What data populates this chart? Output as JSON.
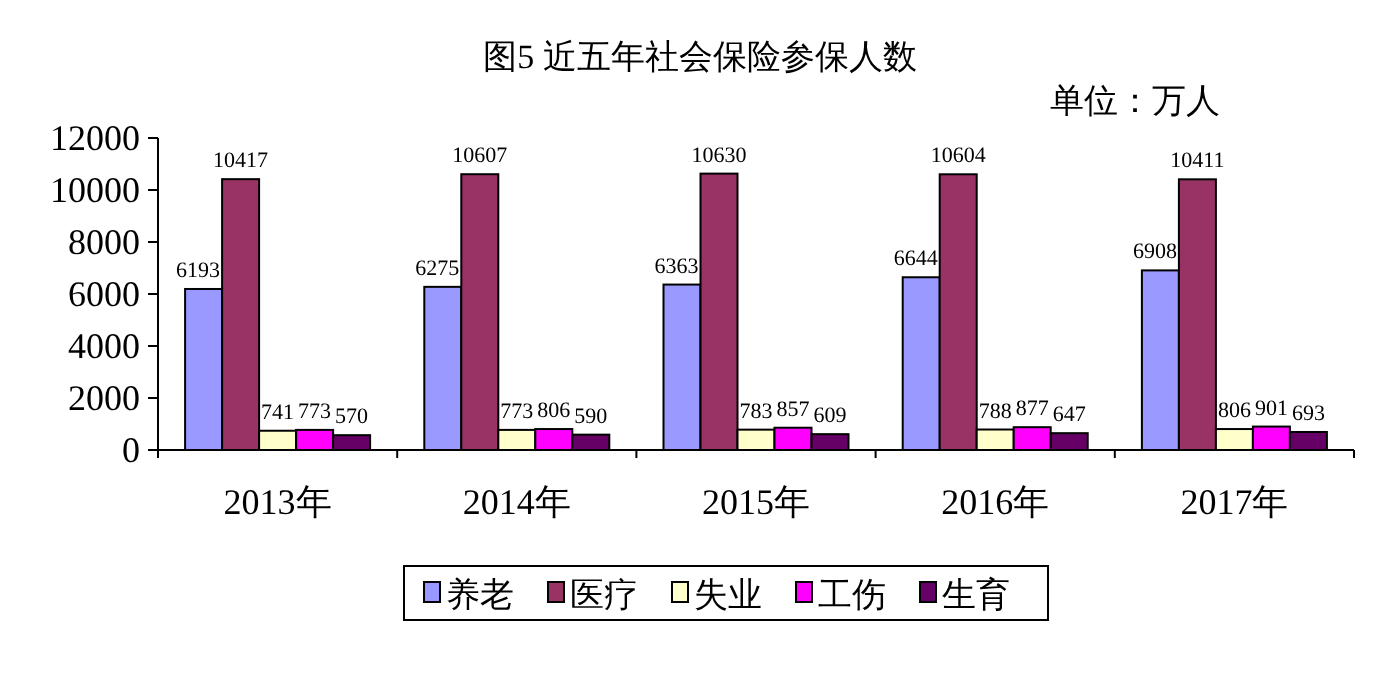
{
  "chart_data": {
    "type": "bar",
    "title": "图5 近五年社会保险参保人数",
    "annotations": [
      "单位：万人"
    ],
    "categories": [
      "2013年",
      "2014年",
      "2015年",
      "2016年",
      "2017年"
    ],
    "series": [
      {
        "name": "养老",
        "color": "#9999ff",
        "values": [
          6193,
          6275,
          6363,
          6644,
          6908
        ]
      },
      {
        "name": "医疗",
        "color": "#993366",
        "values": [
          10417,
          10607,
          10630,
          10604,
          10411
        ]
      },
      {
        "name": "失业",
        "color": "#ffffcc",
        "values": [
          741,
          773,
          783,
          788,
          806
        ]
      },
      {
        "name": "工伤",
        "color": "#ff00ff",
        "values": [
          773,
          806,
          857,
          877,
          901
        ]
      },
      {
        "name": "生育",
        "color": "#660066",
        "values": [
          570,
          590,
          609,
          647,
          693
        ]
      }
    ],
    "ylim": [
      0,
      12000
    ],
    "yticks": [
      0,
      2000,
      4000,
      6000,
      8000,
      10000,
      12000
    ],
    "data_labels": true,
    "legend": "bottom",
    "grid": false
  }
}
